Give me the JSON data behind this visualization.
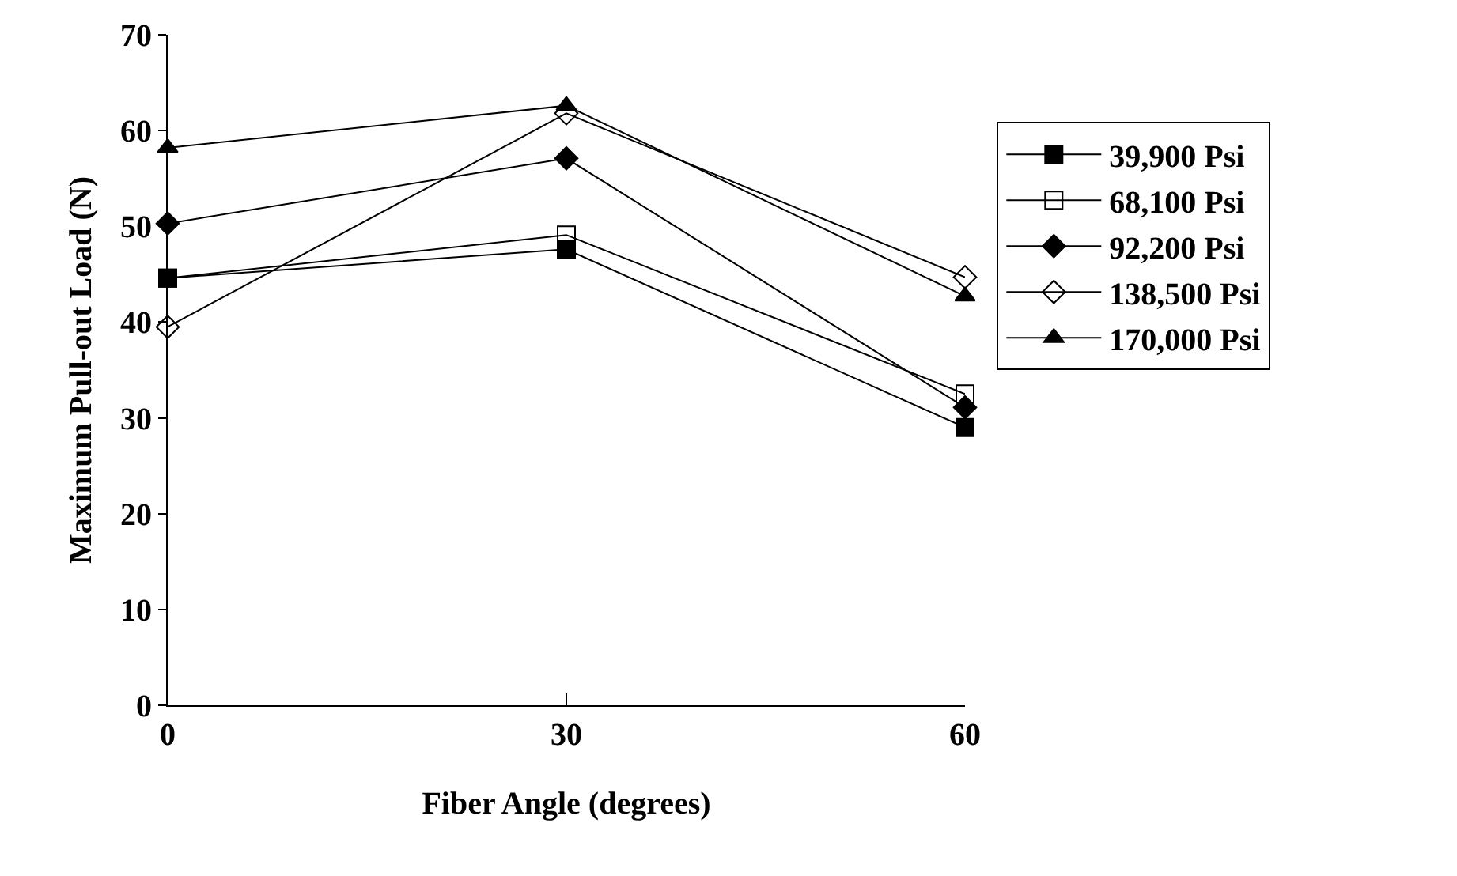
{
  "chart_data": {
    "type": "line",
    "xlabel": "Fiber Angle (degrees)",
    "ylabel": "Maximum Pull-out Load (N)",
    "x": [
      0,
      30,
      60
    ],
    "xlim": [
      0,
      60
    ],
    "xticks": [
      0,
      30,
      60
    ],
    "ylim": [
      0,
      70
    ],
    "yticks": [
      0,
      10,
      20,
      30,
      40,
      50,
      60,
      70
    ],
    "legend": "right",
    "line_style": "solid",
    "series": [
      {
        "name": "39,900 Psi",
        "color": "#000000",
        "marker": "square",
        "values": [
          44.6,
          47.6,
          29.0
        ]
      },
      {
        "name": "68,100 Psi",
        "color": "#000000",
        "marker": "square-open",
        "values": [
          44.6,
          49.1,
          32.5
        ]
      },
      {
        "name": "92,200 Psi",
        "color": "#000000",
        "marker": "diamond",
        "values": [
          50.3,
          57.1,
          31.1
        ]
      },
      {
        "name": "138,500 Psi",
        "color": "#000000",
        "marker": "diamond-open",
        "values": [
          39.5,
          61.8,
          44.7
        ]
      },
      {
        "name": "170,000 Psi",
        "color": "#000000",
        "marker": "triangle",
        "values": [
          58.2,
          62.6,
          42.7
        ]
      }
    ]
  }
}
